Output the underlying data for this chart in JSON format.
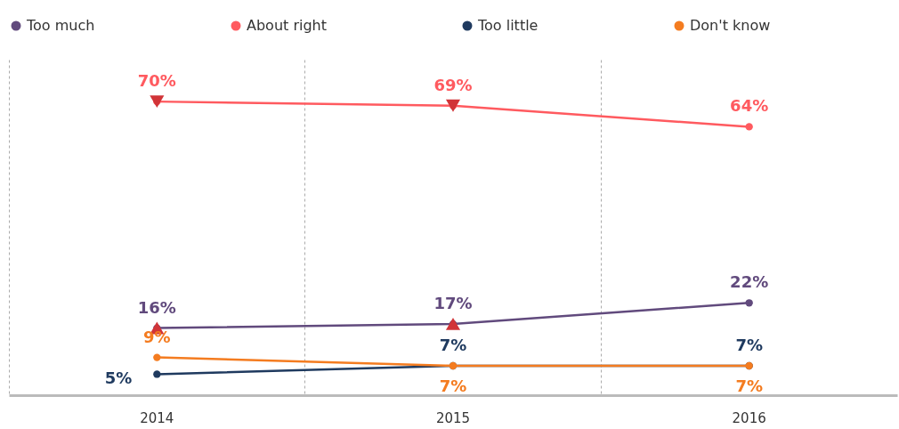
{
  "chart_data": {
    "type": "line",
    "categories": [
      "2014",
      "2015",
      "2016"
    ],
    "ylim": [
      0,
      80
    ],
    "tick_labels": "x",
    "grid": "x",
    "legend": "top",
    "marker": "circle",
    "series": [
      {
        "name": "Too much",
        "color": "#614a7d",
        "values": [
          16,
          17,
          22
        ],
        "value_labels": [
          "16%",
          "17%",
          "22%"
        ]
      },
      {
        "name": "About right",
        "color": "#ff5a5f",
        "values": [
          70,
          69,
          64
        ],
        "value_labels": [
          "70%",
          "69%",
          "64%"
        ]
      },
      {
        "name": "Too little",
        "color": "#1f3a5f",
        "values": [
          5,
          7,
          7
        ],
        "value_labels": [
          "5%",
          "7%",
          "7%"
        ]
      },
      {
        "name": "Don't know",
        "color": "#f47c20",
        "values": [
          9,
          7,
          7
        ],
        "value_labels": [
          "9%",
          "7%",
          "7%"
        ]
      },
      {
        "type": "scatter",
        "color": "#d13438",
        "marker": "triangle",
        "values": [
          16,
          17,
          null
        ]
      },
      {
        "type": "scatter",
        "color": "#d13438",
        "marker": "triangle-down",
        "values": [
          70,
          69,
          null
        ]
      }
    ]
  }
}
